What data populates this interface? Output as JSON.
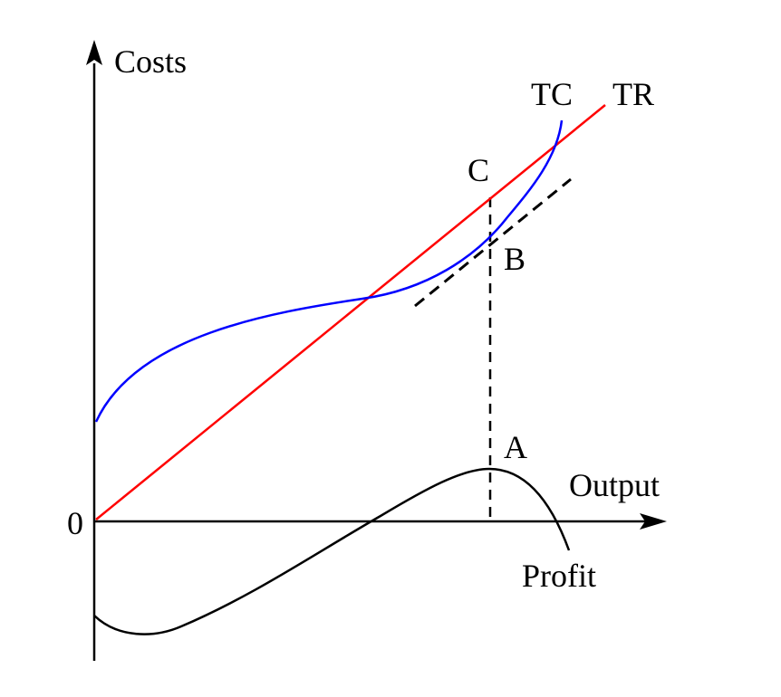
{
  "labels": {
    "y_axis": "Costs",
    "x_axis": "Output",
    "origin": "0",
    "tc_curve": "TC",
    "tr_curve": "TR",
    "profit_curve": "Profit",
    "point_a": "A",
    "point_b": "B",
    "point_c": "C"
  },
  "colors": {
    "tr_line": "#ff0000",
    "tc_curve": "#0000ff",
    "profit_curve": "#000000",
    "axes": "#000000",
    "tangent": "#000000"
  },
  "icons": {
    "y_axis_arrow": "arrow-up-icon",
    "x_axis_arrow": "arrow-right-icon"
  }
}
